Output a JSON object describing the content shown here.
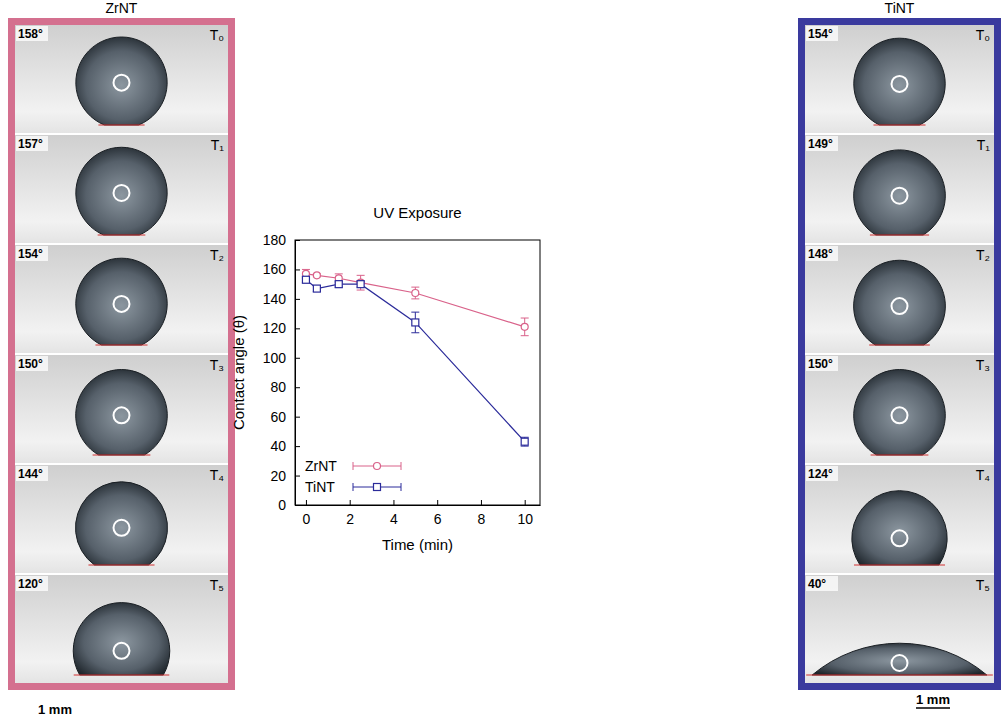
{
  "chart_data": {
    "type": "line",
    "title": "UV Exposure",
    "x_label": "Time (min)",
    "y_label": "Contact angle (θ)",
    "x": [
      0,
      0.5,
      1.5,
      2.5,
      5,
      10
    ],
    "series": [
      {
        "name": "ZrNT",
        "color": "#d9628a",
        "marker": "circle",
        "values": [
          157,
          156,
          154,
          151,
          144,
          121
        ],
        "errors": [
          3,
          1,
          3,
          5,
          4,
          6
        ]
      },
      {
        "name": "TiNT",
        "color": "#2b2b9a",
        "marker": "square",
        "values": [
          153,
          147,
          150,
          150,
          124,
          43
        ],
        "errors": [
          2,
          2,
          2,
          2,
          7,
          3
        ]
      }
    ],
    "xlim": [
      -0.5,
      10.7
    ],
    "xticks": [
      0,
      2,
      4,
      6,
      8,
      10
    ],
    "ylim": [
      0,
      180
    ],
    "yticks": [
      0,
      20,
      40,
      60,
      80,
      100,
      120,
      140,
      160,
      180
    ],
    "legend": "lower left",
    "grid": false
  },
  "panels": [
    {
      "title": "ZrNT",
      "color": "#d4708f",
      "scale_label": "1 mm",
      "frames": [
        {
          "angle": {
            "value": 158,
            "label": "158°"
          },
          "time": "T₀"
        },
        {
          "angle": {
            "value": 157,
            "label": "157°"
          },
          "time": "T₁"
        },
        {
          "angle": {
            "value": 154,
            "label": "154°"
          },
          "time": "T₂"
        },
        {
          "angle": {
            "value": 150,
            "label": "150°"
          },
          "time": "T₃"
        },
        {
          "angle": {
            "value": 144,
            "label": "144°"
          },
          "time": "T₄"
        },
        {
          "angle": {
            "value": 120,
            "label": "120°"
          },
          "time": "T₅"
        }
      ]
    },
    {
      "title": "TiNT",
      "color": "#3a3a9e",
      "scale_label": "1 mm",
      "frames": [
        {
          "angle": {
            "value": 154,
            "label": "154°"
          },
          "time": "T₀"
        },
        {
          "angle": {
            "value": 149,
            "label": "149°"
          },
          "time": "T₁"
        },
        {
          "angle": {
            "value": 148,
            "label": "148°"
          },
          "time": "T₂"
        },
        {
          "angle": {
            "value": 150,
            "label": "150°"
          },
          "time": "T₃"
        },
        {
          "angle": {
            "value": 124,
            "label": "124°"
          },
          "time": "T₄"
        },
        {
          "angle": {
            "value": 40,
            "label": "40°"
          },
          "time": "T₅"
        }
      ]
    }
  ]
}
